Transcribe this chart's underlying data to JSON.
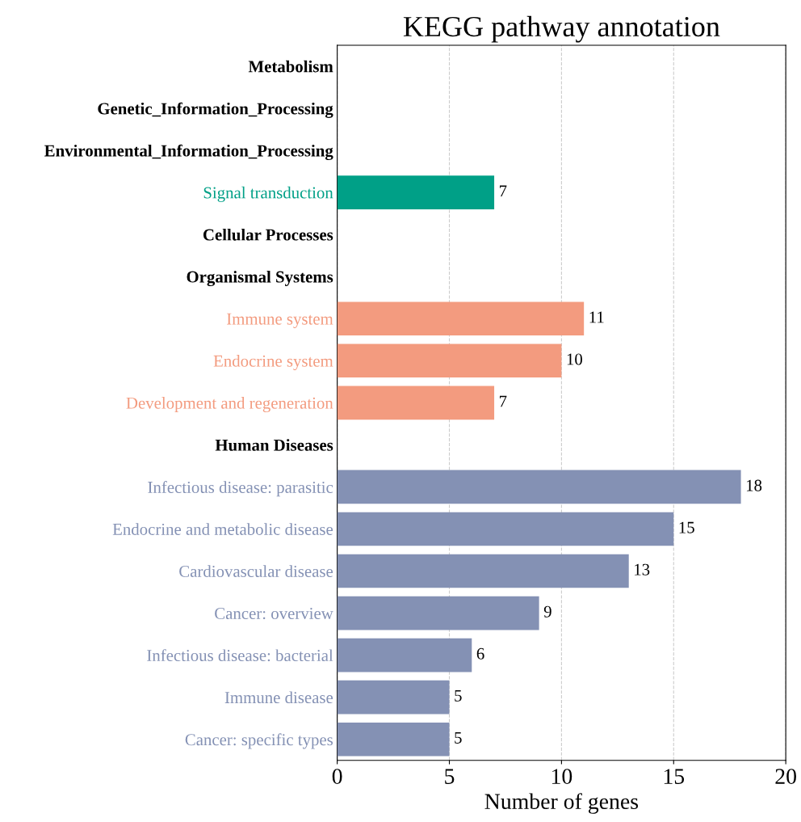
{
  "chart_data": {
    "type": "bar",
    "orientation": "horizontal",
    "title": "KEGG pathway annotation",
    "xlabel": "Number of genes",
    "categories": [
      "Metabolism",
      "Genetic_Information_Processing",
      "Environmental_Information_Processing",
      "Signal transduction",
      "Cellular Processes",
      "Organismal Systems",
      "Immune system",
      "Endocrine system",
      "Development and regeneration",
      "Human Diseases",
      "Infectious disease: parasitic",
      "Endocrine and metabolic disease",
      "Cardiovascular disease",
      "Cancer: overview",
      "Infectious disease: bacterial",
      "Immune disease",
      "Cancer: specific types"
    ],
    "values": [
      null,
      null,
      null,
      7,
      null,
      null,
      11,
      10,
      7,
      null,
      18,
      15,
      13,
      9,
      6,
      5,
      5
    ],
    "colors": [
      "#000000",
      "#000000",
      "#000000",
      "#00a087",
      "#000000",
      "#000000",
      "#f39b7f",
      "#f39b7f",
      "#f39b7f",
      "#000000",
      "#8491b4",
      "#8491b4",
      "#8491b4",
      "#8491b4",
      "#8491b4",
      "#8491b4",
      "#8491b4"
    ],
    "xlim": [
      0,
      20
    ],
    "xticks": [
      0,
      5,
      10,
      15,
      20
    ],
    "grid": "x",
    "data_labels": true
  }
}
